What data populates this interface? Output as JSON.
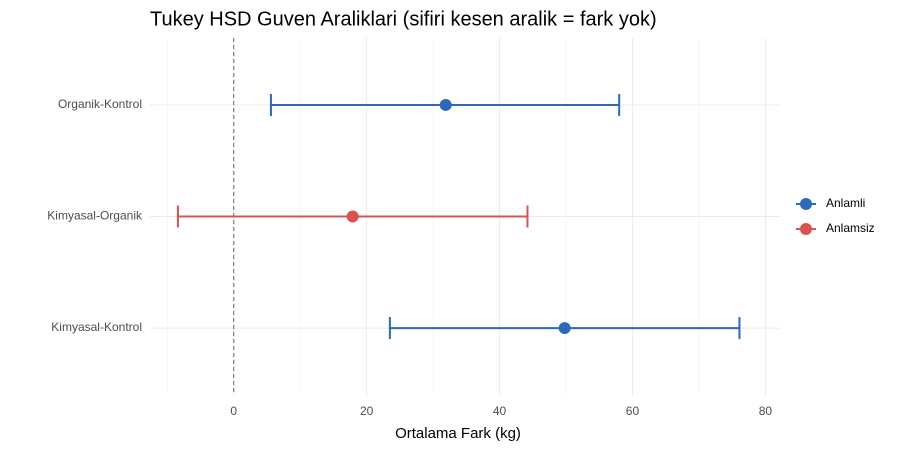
{
  "chart_data": {
    "type": "errorbar",
    "title": "Tukey HSD Guven Araliklari (sifiri kesen aralik = fark yok)",
    "xlabel": "Ortalama Fark (kg)",
    "categories": [
      "Organik-Kontrol",
      "Kimyasal-Organik",
      "Kimyasal-Kontrol"
    ],
    "series": [
      {
        "name": "Anlamli",
        "color": "#2a6ab8",
        "values": [
          31.9,
          null,
          49.8
        ],
        "lower": [
          5.6,
          null,
          23.5
        ],
        "upper": [
          58.0,
          null,
          76.1
        ]
      },
      {
        "name": "Anlamsiz",
        "color": "#d9534f",
        "values": [
          null,
          17.9,
          null
        ],
        "lower": [
          null,
          -8.4,
          null
        ],
        "upper": [
          null,
          44.2,
          null
        ]
      }
    ],
    "xlim": [
      -12.6,
      82.2
    ],
    "xticks": [
      0,
      20,
      40,
      60,
      80
    ],
    "minor_xticks": [
      -10,
      10,
      30,
      50,
      70
    ],
    "vline": 0,
    "grid": true,
    "legend": "right"
  }
}
